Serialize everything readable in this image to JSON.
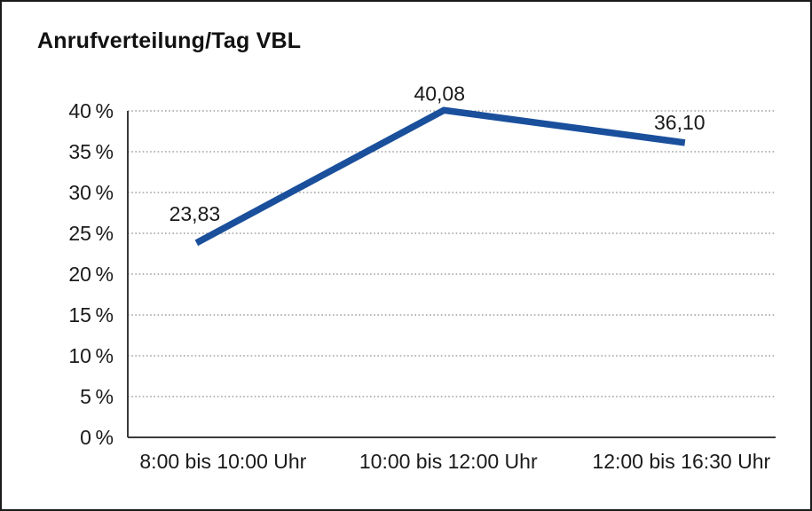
{
  "chart_data": {
    "type": "line",
    "title": "Anrufverteilung/Tag VBL",
    "categories": [
      "8:00 bis 10:00 Uhr",
      "10:00 bis 12:00 Uhr",
      "12:00 bis 16:30 Uhr"
    ],
    "series": [
      {
        "values": [
          23.83,
          40.08,
          36.1
        ],
        "point_labels": [
          "23,83",
          "40,08",
          "36,10"
        ],
        "color": "#1A4F9C"
      }
    ],
    "y_ticks": [
      {
        "value": 0,
        "label": "0 %"
      },
      {
        "value": 5,
        "label": "5 %"
      },
      {
        "value": 10,
        "label": "10 %"
      },
      {
        "value": 15,
        "label": "15 %"
      },
      {
        "value": 20,
        "label": "20 %"
      },
      {
        "value": 25,
        "label": "25 %"
      },
      {
        "value": 30,
        "label": "30 %"
      },
      {
        "value": 35,
        "label": "35 %"
      },
      {
        "value": 40,
        "label": "40 %"
      }
    ],
    "ylim": [
      0,
      40
    ],
    "xlabel": "",
    "ylabel": "",
    "grid": "horizontal-dotted",
    "legend": "none",
    "colors": {
      "line": "#1A4F9C",
      "axis": "#3a3a3a",
      "gridline": "#8c8c8c",
      "text": "#1a1a1a",
      "background": "#ffffff",
      "frame_border": "#1a1a1a"
    }
  }
}
